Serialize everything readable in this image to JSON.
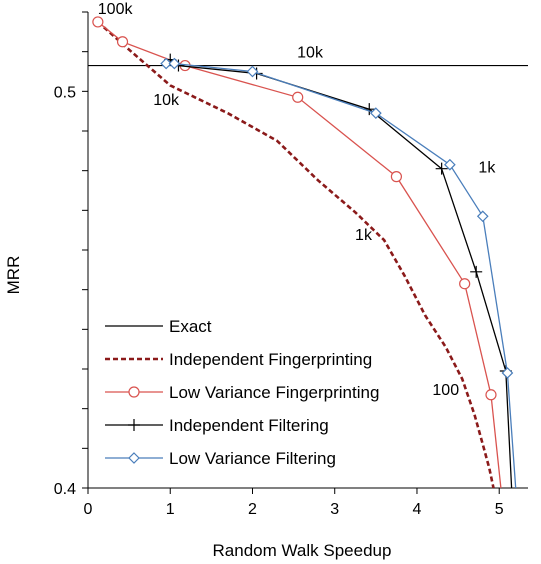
{
  "chart_data": {
    "type": "line",
    "title": "",
    "xlabel": "Random Walk Speedup",
    "ylabel": "MRR",
    "xlim": [
      0,
      5.35
    ],
    "ylim": [
      0.4,
      0.52
    ],
    "x_ticks": [
      0,
      1,
      2,
      3,
      4,
      5
    ],
    "y_ticks": [
      0.4,
      0.5
    ],
    "y_tick_labels": [
      "0.4",
      "0.5"
    ],
    "grid": false,
    "legend_position": "bottom-left",
    "reference_line": {
      "name": "Exact",
      "y": 0.5065
    },
    "series": [
      {
        "name": "Independent Fingerprinting",
        "color": "#8b1a1a",
        "dash": "dashed",
        "marker": "none",
        "x": [
          0.12,
          0.5,
          1.0,
          1.7,
          2.3,
          2.8,
          3.25,
          3.6,
          3.85,
          4.1,
          4.35,
          4.55,
          4.7,
          4.8,
          4.88,
          4.93
        ],
        "y": [
          0.5175,
          0.5105,
          0.5015,
          0.4945,
          0.4875,
          0.4775,
          0.4695,
          0.4625,
          0.4535,
          0.4435,
          0.4355,
          0.4275,
          0.4185,
          0.411,
          0.405,
          0.4
        ]
      },
      {
        "name": "Low Variance Fingerprinting",
        "color": "#d9534f",
        "dash": "solid",
        "marker": "circle",
        "x": [
          0.12,
          0.42,
          1.18,
          2.55,
          3.75,
          4.58,
          4.9,
          5.02
        ],
        "y": [
          0.5175,
          0.5125,
          0.5065,
          0.4985,
          0.4785,
          0.4515,
          0.4235,
          0.4
        ]
      },
      {
        "name": "Independent Filtering",
        "color": "#000000",
        "dash": "solid",
        "marker": "plus",
        "x": [
          1.0,
          1.1,
          2.05,
          3.42,
          4.3,
          4.72,
          5.08,
          5.15
        ],
        "y": [
          0.508,
          0.5065,
          0.5045,
          0.4955,
          0.4805,
          0.4545,
          0.4295,
          0.4
        ]
      },
      {
        "name": "Low Variance Filtering",
        "color": "#4a7ebb",
        "dash": "solid",
        "marker": "diamond",
        "x": [
          0.95,
          1.05,
          2.0,
          3.5,
          4.4,
          4.8,
          5.1,
          5.2
        ],
        "y": [
          0.507,
          0.507,
          0.505,
          0.4945,
          0.4815,
          0.4685,
          0.429,
          0.4
        ]
      }
    ],
    "annotations": [
      {
        "text": "100k",
        "x": 0.33,
        "y": 0.5195
      },
      {
        "text": "10k",
        "x": 2.7,
        "y": 0.5085
      },
      {
        "text": "10k",
        "x": 0.95,
        "y": 0.4965
      },
      {
        "text": "1k",
        "x": 4.85,
        "y": 0.4795
      },
      {
        "text": "1k",
        "x": 3.35,
        "y": 0.4625
      },
      {
        "text": "100",
        "x": 4.35,
        "y": 0.4235
      }
    ]
  }
}
